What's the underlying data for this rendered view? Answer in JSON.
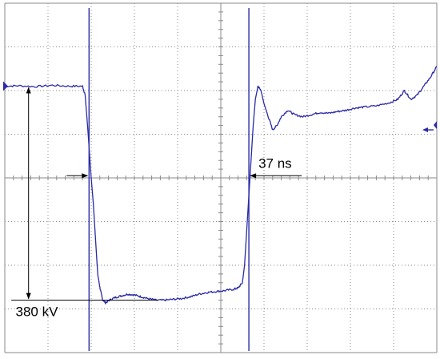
{
  "chart_data": {
    "type": "line",
    "title": "",
    "xlabel": "",
    "ylabel": "",
    "grid": true,
    "divisions": {
      "x": 10,
      "y": 8
    },
    "xlim": [
      0,
      10
    ],
    "ylim": [
      -4,
      4
    ],
    "series": [
      {
        "color": "#2a2aa8",
        "points": [
          [
            0.0,
            2.1
          ],
          [
            0.3,
            2.11
          ],
          [
            0.7,
            2.09
          ],
          [
            1.1,
            2.12
          ],
          [
            1.5,
            2.1
          ],
          [
            1.8,
            2.1
          ],
          [
            1.86,
            1.9
          ],
          [
            1.93,
            1.0
          ],
          [
            2.0,
            0.0
          ],
          [
            2.05,
            -0.6
          ],
          [
            2.1,
            -1.4
          ],
          [
            2.15,
            -2.2
          ],
          [
            2.2,
            -2.5
          ],
          [
            2.26,
            -2.78
          ],
          [
            2.33,
            -2.86
          ],
          [
            2.42,
            -2.8
          ],
          [
            2.55,
            -2.74
          ],
          [
            2.7,
            -2.7
          ],
          [
            2.85,
            -2.66
          ],
          [
            3.0,
            -2.68
          ],
          [
            3.15,
            -2.72
          ],
          [
            3.3,
            -2.76
          ],
          [
            3.5,
            -2.8
          ],
          [
            3.7,
            -2.8
          ],
          [
            3.9,
            -2.78
          ],
          [
            4.1,
            -2.76
          ],
          [
            4.3,
            -2.72
          ],
          [
            4.5,
            -2.66
          ],
          [
            4.7,
            -2.62
          ],
          [
            4.9,
            -2.6
          ],
          [
            5.1,
            -2.58
          ],
          [
            5.3,
            -2.55
          ],
          [
            5.4,
            -2.52
          ],
          [
            5.5,
            -2.4
          ],
          [
            5.55,
            -2.0
          ],
          [
            5.6,
            -1.2
          ],
          [
            5.65,
            -0.4
          ],
          [
            5.7,
            0.4
          ],
          [
            5.75,
            1.2
          ],
          [
            5.8,
            1.8
          ],
          [
            5.86,
            2.1
          ],
          [
            5.93,
            2.0
          ],
          [
            6.0,
            1.7
          ],
          [
            6.1,
            1.4
          ],
          [
            6.2,
            1.1
          ],
          [
            6.3,
            1.2
          ],
          [
            6.4,
            1.4
          ],
          [
            6.55,
            1.55
          ],
          [
            6.7,
            1.45
          ],
          [
            6.9,
            1.4
          ],
          [
            7.1,
            1.45
          ],
          [
            7.3,
            1.5
          ],
          [
            7.5,
            1.48
          ],
          [
            7.7,
            1.52
          ],
          [
            7.9,
            1.55
          ],
          [
            8.1,
            1.6
          ],
          [
            8.3,
            1.62
          ],
          [
            8.6,
            1.65
          ],
          [
            8.9,
            1.72
          ],
          [
            9.1,
            1.8
          ],
          [
            9.25,
            2.0
          ],
          [
            9.4,
            1.8
          ],
          [
            9.55,
            1.9
          ],
          [
            9.7,
            2.1
          ],
          [
            9.85,
            2.3
          ],
          [
            10.0,
            2.55
          ]
        ]
      }
    ],
    "cursors": [
      1.95,
      5.65
    ],
    "annotations": [
      {
        "text": "380 kV",
        "kind": "amplitude",
        "from_y": 2.1,
        "to_y": -2.8
      },
      {
        "text": "37 ns",
        "kind": "time",
        "from_x": 1.95,
        "to_x": 5.65
      }
    ],
    "ref_marker": {
      "kind": "arrow-left",
      "y": 1.1
    }
  }
}
